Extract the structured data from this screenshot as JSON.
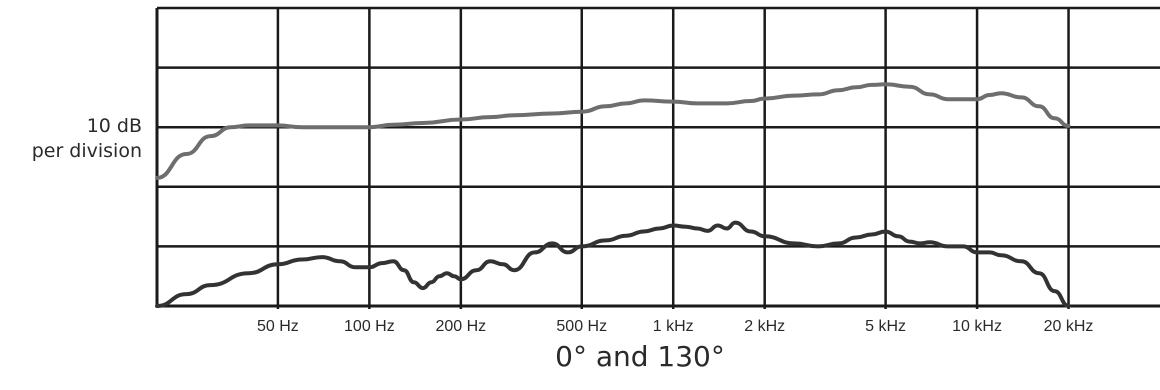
{
  "chart_data": {
    "type": "line",
    "title": "0° and 130°",
    "ylabel_lines": [
      "10 dB",
      "per division"
    ],
    "x_scale": "log",
    "xlim_hz": [
      20,
      40000
    ],
    "x_tick_labels": [
      "50 Hz",
      "100 Hz",
      "200 Hz",
      "500 Hz",
      "1 kHz",
      "2 kHz",
      "5 kHz",
      "10 kHz",
      "20 kHz"
    ],
    "x_tick_values_hz": [
      50,
      100,
      200,
      500,
      1000,
      2000,
      5000,
      10000,
      20000
    ],
    "ylim_db": [
      -30,
      20
    ],
    "y_division_db": 10,
    "grid": true,
    "legend": "none",
    "colors": {
      "upper_curve": "#6e6e6e",
      "lower_curve": "#333333",
      "grid": "#1a1a1a"
    },
    "series": [
      {
        "x": [
          20,
          25,
          30,
          35,
          40,
          45,
          50,
          60,
          70,
          80,
          100,
          120,
          150,
          200,
          250,
          300,
          400,
          500,
          600,
          700,
          800,
          1000,
          1200,
          1500,
          1800,
          2000,
          2500,
          3000,
          3500,
          4000,
          4500,
          5000,
          6000,
          7000,
          8000,
          10000,
          11000,
          12000,
          14000,
          16000,
          18000,
          20000
        ],
        "y": [
          -8.5,
          -4.5,
          -1.5,
          0.0,
          0.3,
          0.3,
          0.3,
          0.0,
          0.0,
          0.0,
          0.0,
          0.4,
          0.7,
          1.3,
          1.7,
          2.0,
          2.3,
          2.6,
          3.5,
          4.0,
          4.5,
          4.3,
          4.0,
          4.0,
          4.4,
          4.8,
          5.3,
          5.5,
          6.2,
          6.7,
          7.1,
          7.2,
          6.8,
          5.5,
          4.7,
          4.7,
          5.4,
          5.7,
          5.0,
          3.5,
          1.5,
          0.2
        ]
      },
      {
        "x": [
          20,
          25,
          30,
          40,
          50,
          60,
          70,
          80,
          90,
          100,
          110,
          120,
          130,
          140,
          150,
          160,
          170,
          180,
          190,
          200,
          225,
          250,
          275,
          300,
          350,
          400,
          450,
          500,
          600,
          700,
          800,
          900,
          1000,
          1100,
          1200,
          1300,
          1400,
          1500,
          1600,
          1800,
          2000,
          2500,
          3000,
          3500,
          4000,
          4500,
          5000,
          5500,
          6000,
          6500,
          7000,
          8000,
          9000,
          10000,
          11000,
          12000,
          14000,
          16000,
          18000,
          20000
        ],
        "y": [
          -30,
          -28,
          -26.5,
          -24.5,
          -23,
          -22.2,
          -21.8,
          -22.5,
          -23.5,
          -23.5,
          -22.8,
          -22.5,
          -24,
          -26,
          -27,
          -26,
          -25,
          -24.5,
          -25,
          -25.5,
          -24,
          -22.5,
          -23,
          -24,
          -21,
          -19.5,
          -21,
          -20,
          -19,
          -18.2,
          -17.5,
          -17,
          -16.5,
          -16.7,
          -17,
          -17.4,
          -16.5,
          -17,
          -16,
          -17.5,
          -18.3,
          -19.5,
          -20,
          -19.5,
          -18.5,
          -18,
          -17.5,
          -18.3,
          -19.2,
          -19.5,
          -19.3,
          -20,
          -20,
          -21,
          -21,
          -21.5,
          -22.5,
          -24.5,
          -27.5,
          -30
        ]
      }
    ]
  }
}
